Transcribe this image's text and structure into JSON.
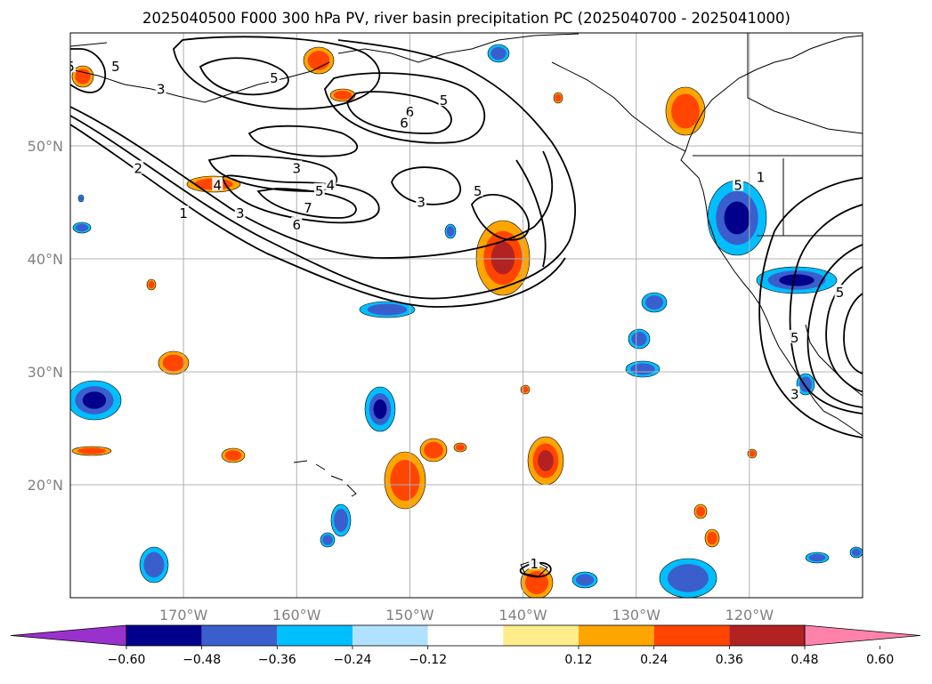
{
  "title": "2025040500 F000 300 hPa PV, river basin precipitation PC (2025040700 - 2025041000)",
  "axes": {
    "lon_range": [
      -180,
      -110
    ],
    "lat_range": [
      10,
      60
    ],
    "lon_ticks": [
      {
        "value": -170,
        "label": "170°W"
      },
      {
        "value": -160,
        "label": "160°W"
      },
      {
        "value": -150,
        "label": "150°W"
      },
      {
        "value": -140,
        "label": "140°W"
      },
      {
        "value": -130,
        "label": "130°W"
      },
      {
        "value": -120,
        "label": "120°W"
      }
    ],
    "lat_ticks": [
      {
        "value": 50,
        "label": "50°N"
      },
      {
        "value": 40,
        "label": "40°N"
      },
      {
        "value": 30,
        "label": "30°N"
      },
      {
        "value": 20,
        "label": "20°N"
      }
    ],
    "grid": true,
    "tick_color": "#808080"
  },
  "colorbar": {
    "extend": "both",
    "bins": [
      {
        "color": "#9932cc"
      },
      {
        "color": "#00008b"
      },
      {
        "color": "#3a5fcd"
      },
      {
        "color": "#00bfff"
      },
      {
        "color": "#b0e2ff"
      },
      {
        "color": "#ffffff"
      },
      {
        "color": "#ffec8b"
      },
      {
        "color": "#ffa500"
      },
      {
        "color": "#ff4500"
      },
      {
        "color": "#b22222"
      },
      {
        "color": "#ff82ab"
      }
    ],
    "tick_labels": [
      "−0.60",
      "−0.48",
      "−0.36",
      "−0.24",
      "−0.12",
      "0.12",
      "0.24",
      "0.36",
      "0.48",
      "0.60"
    ]
  },
  "chart_data": {
    "type": "map",
    "fields": {
      "filled": "river basin precipitation PC",
      "contours": "300 hPa PV"
    },
    "pv_contour_labels": [
      {
        "lon": -172,
        "lat": 55,
        "text": "3"
      },
      {
        "lon": -180,
        "lat": 57,
        "text": "5"
      },
      {
        "lon": -176,
        "lat": 57,
        "text": "5"
      },
      {
        "lon": -162,
        "lat": 56,
        "text": "5"
      },
      {
        "lon": -147,
        "lat": 54,
        "text": "5"
      },
      {
        "lon": -150,
        "lat": 53,
        "text": "6"
      },
      {
        "lon": -150.5,
        "lat": 52,
        "text": "6"
      },
      {
        "lon": -160,
        "lat": 48,
        "text": "3"
      },
      {
        "lon": -174,
        "lat": 48,
        "text": "2"
      },
      {
        "lon": -167,
        "lat": 46.5,
        "text": "4"
      },
      {
        "lon": -158,
        "lat": 46,
        "text": "5"
      },
      {
        "lon": -157,
        "lat": 46.5,
        "text": "4"
      },
      {
        "lon": -159,
        "lat": 44.5,
        "text": "7"
      },
      {
        "lon": -160,
        "lat": 43,
        "text": "6"
      },
      {
        "lon": -165,
        "lat": 44,
        "text": "3"
      },
      {
        "lon": -170,
        "lat": 44,
        "text": "1"
      },
      {
        "lon": -149,
        "lat": 45,
        "text": "3"
      },
      {
        "lon": -144,
        "lat": 46,
        "text": "5"
      },
      {
        "lon": -121,
        "lat": 46.5,
        "text": "5"
      },
      {
        "lon": -119,
        "lat": 47.2,
        "text": "1"
      },
      {
        "lon": -116,
        "lat": 33,
        "text": "5"
      },
      {
        "lon": -112,
        "lat": 37,
        "text": "5"
      },
      {
        "lon": -116,
        "lat": 28,
        "text": "3"
      },
      {
        "lon": -139,
        "lat": 13,
        "text": "1"
      }
    ]
  }
}
